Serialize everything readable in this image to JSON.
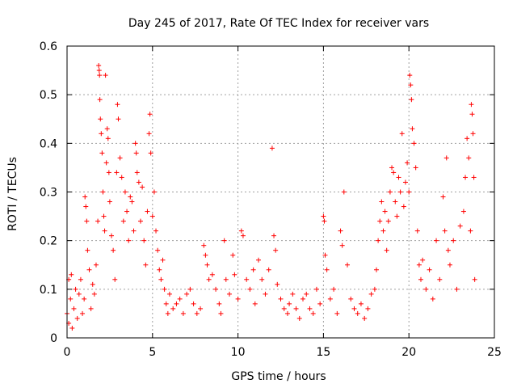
{
  "chart_data": {
    "type": "scatter",
    "title": "Day 245 of 2017, Rate Of TEC Index for receiver vars",
    "xlabel": "GPS time / hours",
    "ylabel": "ROTI / TECUs",
    "xlim": [
      0,
      25
    ],
    "ylim": [
      0,
      0.6
    ],
    "xticks": [
      0,
      5,
      10,
      15,
      20,
      25
    ],
    "yticks": [
      0,
      0.1,
      0.2,
      0.3,
      0.4,
      0.5,
      0.6
    ],
    "xtick_labels": [
      "0",
      "5",
      "10",
      "15",
      "20",
      "25"
    ],
    "ytick_labels": [
      "0",
      "0.1",
      "0.2",
      "0.3",
      "0.4",
      "0.5",
      "0.6"
    ],
    "grid": true,
    "marker": "+",
    "color": "#ff0000",
    "series": [
      {
        "name": "ROTI",
        "points": [
          [
            0.0,
            0.05
          ],
          [
            0.1,
            0.12
          ],
          [
            0.1,
            0.03
          ],
          [
            0.2,
            0.08
          ],
          [
            0.25,
            0.13
          ],
          [
            0.3,
            0.02
          ],
          [
            0.4,
            0.06
          ],
          [
            0.5,
            0.1
          ],
          [
            0.6,
            0.04
          ],
          [
            0.7,
            0.09
          ],
          [
            0.8,
            0.12
          ],
          [
            0.9,
            0.05
          ],
          [
            1.0,
            0.08
          ],
          [
            1.05,
            0.29
          ],
          [
            1.1,
            0.27
          ],
          [
            1.15,
            0.24
          ],
          [
            1.2,
            0.18
          ],
          [
            1.3,
            0.14
          ],
          [
            1.4,
            0.06
          ],
          [
            1.5,
            0.11
          ],
          [
            1.6,
            0.09
          ],
          [
            1.7,
            0.15
          ],
          [
            1.8,
            0.24
          ],
          [
            1.85,
            0.56
          ],
          [
            1.88,
            0.55
          ],
          [
            1.9,
            0.54
          ],
          [
            1.92,
            0.49
          ],
          [
            1.95,
            0.45
          ],
          [
            2.0,
            0.42
          ],
          [
            2.05,
            0.38
          ],
          [
            2.1,
            0.3
          ],
          [
            2.15,
            0.25
          ],
          [
            2.2,
            0.22
          ],
          [
            2.25,
            0.54
          ],
          [
            2.3,
            0.36
          ],
          [
            2.35,
            0.43
          ],
          [
            2.4,
            0.41
          ],
          [
            2.45,
            0.34
          ],
          [
            2.5,
            0.28
          ],
          [
            2.6,
            0.21
          ],
          [
            2.7,
            0.18
          ],
          [
            2.8,
            0.12
          ],
          [
            2.9,
            0.34
          ],
          [
            2.95,
            0.48
          ],
          [
            3.0,
            0.45
          ],
          [
            3.1,
            0.37
          ],
          [
            3.2,
            0.33
          ],
          [
            3.3,
            0.24
          ],
          [
            3.4,
            0.3
          ],
          [
            3.5,
            0.26
          ],
          [
            3.6,
            0.2
          ],
          [
            3.7,
            0.29
          ],
          [
            3.8,
            0.28
          ],
          [
            3.9,
            0.22
          ],
          [
            4.0,
            0.4
          ],
          [
            4.05,
            0.38
          ],
          [
            4.1,
            0.34
          ],
          [
            4.2,
            0.32
          ],
          [
            4.3,
            0.24
          ],
          [
            4.4,
            0.31
          ],
          [
            4.5,
            0.2
          ],
          [
            4.6,
            0.15
          ],
          [
            4.7,
            0.26
          ],
          [
            4.8,
            0.42
          ],
          [
            4.85,
            0.46
          ],
          [
            4.9,
            0.38
          ],
          [
            5.0,
            0.25
          ],
          [
            5.1,
            0.3
          ],
          [
            5.2,
            0.22
          ],
          [
            5.3,
            0.18
          ],
          [
            5.4,
            0.14
          ],
          [
            5.5,
            0.12
          ],
          [
            5.6,
            0.16
          ],
          [
            5.7,
            0.1
          ],
          [
            5.8,
            0.07
          ],
          [
            5.9,
            0.05
          ],
          [
            6.0,
            0.09
          ],
          [
            6.2,
            0.06
          ],
          [
            6.4,
            0.07
          ],
          [
            6.6,
            0.08
          ],
          [
            6.8,
            0.05
          ],
          [
            7.0,
            0.09
          ],
          [
            7.2,
            0.1
          ],
          [
            7.4,
            0.07
          ],
          [
            7.6,
            0.05
          ],
          [
            7.8,
            0.06
          ],
          [
            8.0,
            0.19
          ],
          [
            8.1,
            0.17
          ],
          [
            8.2,
            0.15
          ],
          [
            8.3,
            0.12
          ],
          [
            8.5,
            0.13
          ],
          [
            8.7,
            0.1
          ],
          [
            8.9,
            0.07
          ],
          [
            9.0,
            0.05
          ],
          [
            9.2,
            0.2
          ],
          [
            9.3,
            0.12
          ],
          [
            9.5,
            0.09
          ],
          [
            9.7,
            0.17
          ],
          [
            9.8,
            0.13
          ],
          [
            10.0,
            0.08
          ],
          [
            10.2,
            0.22
          ],
          [
            10.3,
            0.21
          ],
          [
            10.5,
            0.12
          ],
          [
            10.7,
            0.1
          ],
          [
            10.9,
            0.14
          ],
          [
            11.0,
            0.07
          ],
          [
            11.2,
            0.16
          ],
          [
            11.4,
            0.12
          ],
          [
            11.6,
            0.09
          ],
          [
            11.8,
            0.14
          ],
          [
            12.0,
            0.39
          ],
          [
            12.1,
            0.21
          ],
          [
            12.2,
            0.18
          ],
          [
            12.3,
            0.11
          ],
          [
            12.5,
            0.08
          ],
          [
            12.7,
            0.06
          ],
          [
            12.9,
            0.05
          ],
          [
            13.0,
            0.07
          ],
          [
            13.2,
            0.09
          ],
          [
            13.4,
            0.06
          ],
          [
            13.6,
            0.04
          ],
          [
            13.8,
            0.08
          ],
          [
            14.0,
            0.09
          ],
          [
            14.2,
            0.06
          ],
          [
            14.4,
            0.05
          ],
          [
            14.6,
            0.1
          ],
          [
            14.8,
            0.07
          ],
          [
            15.0,
            0.25
          ],
          [
            15.05,
            0.24
          ],
          [
            15.1,
            0.17
          ],
          [
            15.2,
            0.14
          ],
          [
            15.4,
            0.08
          ],
          [
            15.6,
            0.1
          ],
          [
            15.8,
            0.05
          ],
          [
            16.0,
            0.22
          ],
          [
            16.1,
            0.19
          ],
          [
            16.2,
            0.3
          ],
          [
            16.4,
            0.15
          ],
          [
            16.6,
            0.08
          ],
          [
            16.8,
            0.06
          ],
          [
            17.0,
            0.05
          ],
          [
            17.2,
            0.07
          ],
          [
            17.4,
            0.04
          ],
          [
            17.6,
            0.06
          ],
          [
            17.8,
            0.09
          ],
          [
            18.0,
            0.1
          ],
          [
            18.1,
            0.14
          ],
          [
            18.2,
            0.2
          ],
          [
            18.3,
            0.24
          ],
          [
            18.4,
            0.28
          ],
          [
            18.5,
            0.22
          ],
          [
            18.6,
            0.26
          ],
          [
            18.7,
            0.18
          ],
          [
            18.8,
            0.24
          ],
          [
            18.9,
            0.3
          ],
          [
            19.0,
            0.35
          ],
          [
            19.1,
            0.34
          ],
          [
            19.2,
            0.28
          ],
          [
            19.3,
            0.25
          ],
          [
            19.4,
            0.33
          ],
          [
            19.5,
            0.3
          ],
          [
            19.6,
            0.42
          ],
          [
            19.7,
            0.27
          ],
          [
            19.8,
            0.32
          ],
          [
            19.9,
            0.36
          ],
          [
            20.0,
            0.3
          ],
          [
            20.05,
            0.54
          ],
          [
            20.1,
            0.52
          ],
          [
            20.15,
            0.49
          ],
          [
            20.2,
            0.43
          ],
          [
            20.3,
            0.4
          ],
          [
            20.4,
            0.35
          ],
          [
            20.5,
            0.22
          ],
          [
            20.6,
            0.15
          ],
          [
            20.7,
            0.12
          ],
          [
            20.8,
            0.16
          ],
          [
            21.0,
            0.1
          ],
          [
            21.2,
            0.14
          ],
          [
            21.4,
            0.08
          ],
          [
            21.6,
            0.2
          ],
          [
            21.8,
            0.12
          ],
          [
            22.0,
            0.29
          ],
          [
            22.1,
            0.22
          ],
          [
            22.2,
            0.37
          ],
          [
            22.3,
            0.18
          ],
          [
            22.4,
            0.15
          ],
          [
            22.6,
            0.2
          ],
          [
            22.8,
            0.1
          ],
          [
            23.0,
            0.23
          ],
          [
            23.2,
            0.26
          ],
          [
            23.3,
            0.33
          ],
          [
            23.4,
            0.41
          ],
          [
            23.5,
            0.37
          ],
          [
            23.6,
            0.22
          ],
          [
            23.65,
            0.48
          ],
          [
            23.7,
            0.46
          ],
          [
            23.75,
            0.42
          ],
          [
            23.8,
            0.33
          ],
          [
            23.85,
            0.12
          ]
        ]
      }
    ]
  }
}
